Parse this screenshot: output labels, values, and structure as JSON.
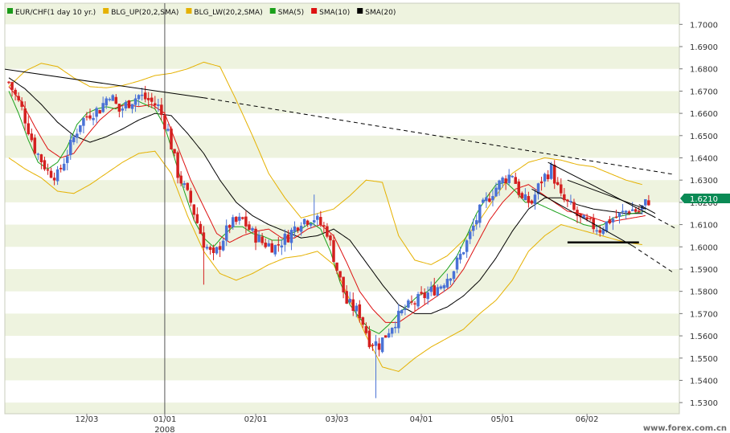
{
  "chart_data": {
    "type": "candlestick",
    "title": "",
    "legend": {
      "placement": "top-left",
      "items": [
        {
          "label": "EUR/CHF(1 day  10 yr.)",
          "color": "#1a9a1a"
        },
        {
          "label": "BLG_UP(20,2,SMA)",
          "color": "#e5b100"
        },
        {
          "label": "BLG_LW(20,2,SMA)",
          "color": "#e5b100"
        },
        {
          "label": "SMA(5)",
          "color": "#1aa01a"
        },
        {
          "label": "SMA(10)",
          "color": "#dd1111"
        },
        {
          "label": "SMA(20)",
          "color": "#000000"
        }
      ]
    },
    "colors": {
      "up_candle": "#4a72d6",
      "down_candle": "#d42020",
      "sma5": "#1aa01a",
      "sma10": "#dd1111",
      "sma20": "#000000",
      "bollinger": "#e5b100",
      "band_stripe": "#eef3df",
      "current_price_bg": "#0a8a55"
    },
    "y_axis": {
      "ylim": [
        1.525,
        1.7095
      ],
      "ticks": [
        "1.7000",
        "1.6900",
        "1.6800",
        "1.6700",
        "1.6600",
        "1.6500",
        "1.6400",
        "1.6300",
        "1.6200",
        "1.6100",
        "1.6000",
        "1.5900",
        "1.5800",
        "1.5700",
        "1.5600",
        "1.5500",
        "1.5400",
        "1.5300"
      ],
      "position": "right"
    },
    "x_axis": {
      "range_days": [
        0,
        200
      ],
      "ticks": [
        {
          "label": "12/03",
          "day": 24
        },
        {
          "label": "01/01",
          "day": 48
        },
        {
          "label": "02/01",
          "day": 76
        },
        {
          "label": "03/03",
          "day": 101
        },
        {
          "label": "04/01",
          "day": 127
        },
        {
          "label": "05/01",
          "day": 152
        },
        {
          "label": "06/02",
          "day": 178
        }
      ],
      "year_label": "2008",
      "year_marker_day": 48
    },
    "current_price": "1.6210",
    "trendlines": [
      {
        "style": "solid",
        "points": [
          [
            -2,
            1.68
          ],
          [
            60,
            1.667
          ]
        ]
      },
      {
        "style": "dashed",
        "points": [
          [
            60,
            1.667
          ],
          [
            205,
            1.6325
          ]
        ]
      },
      {
        "style": "solid",
        "points": [
          [
            166,
            1.638
          ],
          [
            198,
            1.614
          ]
        ]
      },
      {
        "style": "dashed",
        "points": [
          [
            198,
            1.614
          ],
          [
            205,
            1.6085
          ]
        ]
      },
      {
        "style": "solid",
        "points": [
          [
            161,
            1.626
          ],
          [
            192,
            1.6005
          ]
        ]
      },
      {
        "style": "dashed",
        "points": [
          [
            192,
            1.6005
          ],
          [
            205,
            1.588
          ]
        ]
      },
      {
        "style": "solid",
        "points": [
          [
            172,
            1.63
          ],
          [
            196,
            1.617
          ]
        ]
      },
      {
        "style": "solid",
        "points": [
          [
            194,
            1.619
          ],
          [
            199,
            1.615
          ]
        ]
      },
      {
        "style": "bold",
        "points": [
          [
            172,
            1.602
          ],
          [
            194,
            1.602
          ]
        ]
      }
    ],
    "bollinger_upper": [
      [
        0,
        1.672
      ],
      [
        5,
        1.679
      ],
      [
        10,
        1.6825
      ],
      [
        15,
        1.681
      ],
      [
        20,
        1.676
      ],
      [
        25,
        1.672
      ],
      [
        30,
        1.6715
      ],
      [
        35,
        1.6725
      ],
      [
        40,
        1.6745
      ],
      [
        45,
        1.677
      ],
      [
        50,
        1.678
      ],
      [
        55,
        1.68
      ],
      [
        60,
        1.683
      ],
      [
        65,
        1.681
      ],
      [
        70,
        1.666
      ],
      [
        75,
        1.65
      ],
      [
        80,
        1.633
      ],
      [
        85,
        1.622
      ],
      [
        90,
        1.613
      ],
      [
        95,
        1.615
      ],
      [
        100,
        1.617
      ],
      [
        105,
        1.623
      ],
      [
        110,
        1.63
      ],
      [
        115,
        1.629
      ],
      [
        120,
        1.605
      ],
      [
        125,
        1.594
      ],
      [
        130,
        1.592
      ],
      [
        135,
        1.596
      ],
      [
        140,
        1.603
      ],
      [
        145,
        1.612
      ],
      [
        150,
        1.623
      ],
      [
        155,
        1.633
      ],
      [
        160,
        1.638
      ],
      [
        165,
        1.64
      ],
      [
        170,
        1.639
      ],
      [
        175,
        1.637
      ],
      [
        180,
        1.636
      ],
      [
        185,
        1.633
      ],
      [
        190,
        1.63
      ],
      [
        195,
        1.628
      ]
    ],
    "bollinger_lower": [
      [
        0,
        1.64
      ],
      [
        5,
        1.635
      ],
      [
        10,
        1.631
      ],
      [
        15,
        1.625
      ],
      [
        20,
        1.624
      ],
      [
        25,
        1.628
      ],
      [
        30,
        1.633
      ],
      [
        35,
        1.638
      ],
      [
        40,
        1.642
      ],
      [
        45,
        1.643
      ],
      [
        50,
        1.633
      ],
      [
        55,
        1.614
      ],
      [
        60,
        1.598
      ],
      [
        65,
        1.588
      ],
      [
        70,
        1.585
      ],
      [
        75,
        1.588
      ],
      [
        80,
        1.592
      ],
      [
        85,
        1.595
      ],
      [
        90,
        1.596
      ],
      [
        95,
        1.598
      ],
      [
        100,
        1.592
      ],
      [
        105,
        1.576
      ],
      [
        110,
        1.56
      ],
      [
        115,
        1.546
      ],
      [
        120,
        1.544
      ],
      [
        125,
        1.55
      ],
      [
        130,
        1.555
      ],
      [
        135,
        1.559
      ],
      [
        140,
        1.563
      ],
      [
        145,
        1.57
      ],
      [
        150,
        1.576
      ],
      [
        155,
        1.585
      ],
      [
        160,
        1.598
      ],
      [
        165,
        1.605
      ],
      [
        170,
        1.61
      ],
      [
        175,
        1.608
      ],
      [
        180,
        1.606
      ],
      [
        185,
        1.604
      ],
      [
        190,
        1.602
      ],
      [
        195,
        1.601
      ]
    ],
    "sma20": [
      [
        0,
        1.676
      ],
      [
        5,
        1.671
      ],
      [
        10,
        1.664
      ],
      [
        15,
        1.656
      ],
      [
        20,
        1.65
      ],
      [
        25,
        1.647
      ],
      [
        30,
        1.6495
      ],
      [
        35,
        1.653
      ],
      [
        40,
        1.657
      ],
      [
        45,
        1.66
      ],
      [
        50,
        1.659
      ],
      [
        55,
        1.651
      ],
      [
        60,
        1.642
      ],
      [
        65,
        1.63
      ],
      [
        70,
        1.62
      ],
      [
        75,
        1.614
      ],
      [
        80,
        1.61
      ],
      [
        85,
        1.607
      ],
      [
        90,
        1.604
      ],
      [
        95,
        1.605
      ],
      [
        100,
        1.608
      ],
      [
        105,
        1.603
      ],
      [
        110,
        1.593
      ],
      [
        115,
        1.583
      ],
      [
        120,
        1.574
      ],
      [
        125,
        1.57
      ],
      [
        130,
        1.57
      ],
      [
        135,
        1.573
      ],
      [
        140,
        1.578
      ],
      [
        145,
        1.585
      ],
      [
        150,
        1.595
      ],
      [
        155,
        1.607
      ],
      [
        160,
        1.617
      ],
      [
        165,
        1.622
      ],
      [
        170,
        1.622
      ],
      [
        175,
        1.619
      ],
      [
        180,
        1.617
      ],
      [
        185,
        1.616
      ],
      [
        190,
        1.615
      ],
      [
        195,
        1.615
      ]
    ],
    "sma10": [
      [
        0,
        1.672
      ],
      [
        4,
        1.665
      ],
      [
        8,
        1.654
      ],
      [
        12,
        1.644
      ],
      [
        16,
        1.64
      ],
      [
        20,
        1.642
      ],
      [
        24,
        1.65
      ],
      [
        28,
        1.657
      ],
      [
        32,
        1.662
      ],
      [
        36,
        1.664
      ],
      [
        40,
        1.663
      ],
      [
        44,
        1.664
      ],
      [
        48,
        1.66
      ],
      [
        52,
        1.645
      ],
      [
        56,
        1.63
      ],
      [
        60,
        1.618
      ],
      [
        64,
        1.606
      ],
      [
        68,
        1.602
      ],
      [
        72,
        1.605
      ],
      [
        76,
        1.607
      ],
      [
        80,
        1.608
      ],
      [
        84,
        1.604
      ],
      [
        88,
        1.604
      ],
      [
        92,
        1.608
      ],
      [
        96,
        1.61
      ],
      [
        100,
        1.605
      ],
      [
        104,
        1.593
      ],
      [
        108,
        1.58
      ],
      [
        112,
        1.572
      ],
      [
        116,
        1.566
      ],
      [
        120,
        1.566
      ],
      [
        124,
        1.57
      ],
      [
        128,
        1.574
      ],
      [
        132,
        1.578
      ],
      [
        136,
        1.582
      ],
      [
        140,
        1.59
      ],
      [
        144,
        1.601
      ],
      [
        148,
        1.612
      ],
      [
        152,
        1.62
      ],
      [
        156,
        1.626
      ],
      [
        160,
        1.628
      ],
      [
        164,
        1.624
      ],
      [
        168,
        1.62
      ],
      [
        172,
        1.616
      ],
      [
        176,
        1.615
      ],
      [
        180,
        1.613
      ],
      [
        184,
        1.611
      ],
      [
        188,
        1.612
      ],
      [
        192,
        1.613
      ],
      [
        196,
        1.614
      ]
    ],
    "sma5": [
      [
        0,
        1.67
      ],
      [
        3,
        1.66
      ],
      [
        6,
        1.648
      ],
      [
        9,
        1.638
      ],
      [
        12,
        1.635
      ],
      [
        15,
        1.638
      ],
      [
        18,
        1.645
      ],
      [
        21,
        1.655
      ],
      [
        24,
        1.66
      ],
      [
        27,
        1.662
      ],
      [
        30,
        1.663
      ],
      [
        33,
        1.662
      ],
      [
        36,
        1.665
      ],
      [
        39,
        1.666
      ],
      [
        42,
        1.664
      ],
      [
        45,
        1.662
      ],
      [
        48,
        1.654
      ],
      [
        51,
        1.64
      ],
      [
        54,
        1.625
      ],
      [
        57,
        1.612
      ],
      [
        60,
        1.604
      ],
      [
        63,
        1.6
      ],
      [
        66,
        1.605
      ],
      [
        69,
        1.609
      ],
      [
        72,
        1.609
      ],
      [
        75,
        1.606
      ],
      [
        78,
        1.605
      ],
      [
        81,
        1.603
      ],
      [
        84,
        1.603
      ],
      [
        87,
        1.606
      ],
      [
        90,
        1.608
      ],
      [
        93,
        1.611
      ],
      [
        96,
        1.608
      ],
      [
        99,
        1.598
      ],
      [
        102,
        1.584
      ],
      [
        105,
        1.574
      ],
      [
        108,
        1.568
      ],
      [
        111,
        1.563
      ],
      [
        114,
        1.561
      ],
      [
        117,
        1.565
      ],
      [
        120,
        1.57
      ],
      [
        123,
        1.574
      ],
      [
        126,
        1.578
      ],
      [
        129,
        1.58
      ],
      [
        132,
        1.585
      ],
      [
        135,
        1.59
      ],
      [
        138,
        1.596
      ],
      [
        141,
        1.605
      ],
      [
        144,
        1.615
      ],
      [
        147,
        1.622
      ],
      [
        150,
        1.628
      ],
      [
        153,
        1.629
      ],
      [
        156,
        1.625
      ],
      [
        159,
        1.62
      ],
      [
        162,
        1.62
      ],
      [
        165,
        1.618
      ],
      [
        168,
        1.616
      ],
      [
        171,
        1.614
      ],
      [
        174,
        1.612
      ],
      [
        177,
        1.61
      ],
      [
        180,
        1.609
      ],
      [
        183,
        1.61
      ],
      [
        186,
        1.613
      ],
      [
        189,
        1.614
      ],
      [
        192,
        1.615
      ],
      [
        196,
        1.616
      ]
    ],
    "close_anchors": [
      [
        0,
        1.674
      ],
      [
        4,
        1.662
      ],
      [
        8,
        1.644
      ],
      [
        12,
        1.634
      ],
      [
        15,
        1.632
      ],
      [
        18,
        1.642
      ],
      [
        22,
        1.656
      ],
      [
        25,
        1.66
      ],
      [
        28,
        1.662
      ],
      [
        31,
        1.669
      ],
      [
        34,
        1.661
      ],
      [
        37,
        1.665
      ],
      [
        40,
        1.668
      ],
      [
        43,
        1.666
      ],
      [
        46,
        1.663
      ],
      [
        49,
        1.652
      ],
      [
        52,
        1.633
      ],
      [
        56,
        1.62
      ],
      [
        60,
        1.602
      ],
      [
        63,
        1.595
      ],
      [
        65,
        1.601
      ],
      [
        68,
        1.61
      ],
      [
        72,
        1.612
      ],
      [
        75,
        1.606
      ],
      [
        78,
        1.602
      ],
      [
        82,
        1.6
      ],
      [
        86,
        1.605
      ],
      [
        90,
        1.612
      ],
      [
        94,
        1.613
      ],
      [
        98,
        1.607
      ],
      [
        101,
        1.59
      ],
      [
        104,
        1.575
      ],
      [
        108,
        1.57
      ],
      [
        111,
        1.558
      ],
      [
        114,
        1.556
      ],
      [
        118,
        1.565
      ],
      [
        122,
        1.572
      ],
      [
        125,
        1.575
      ],
      [
        129,
        1.579
      ],
      [
        133,
        1.583
      ],
      [
        137,
        1.59
      ],
      [
        141,
        1.602
      ],
      [
        145,
        1.616
      ],
      [
        149,
        1.625
      ],
      [
        152,
        1.63
      ],
      [
        155,
        1.633
      ],
      [
        158,
        1.621
      ],
      [
        161,
        1.62
      ],
      [
        164,
        1.63
      ],
      [
        167,
        1.635
      ],
      [
        170,
        1.622
      ],
      [
        173,
        1.618
      ],
      [
        176,
        1.612
      ],
      [
        179,
        1.61
      ],
      [
        182,
        1.608
      ],
      [
        185,
        1.612
      ],
      [
        188,
        1.614
      ],
      [
        191,
        1.617
      ],
      [
        194,
        1.616
      ],
      [
        197,
        1.621
      ]
    ],
    "bar_count": 198,
    "watermark": "www.forex.com.cn"
  }
}
